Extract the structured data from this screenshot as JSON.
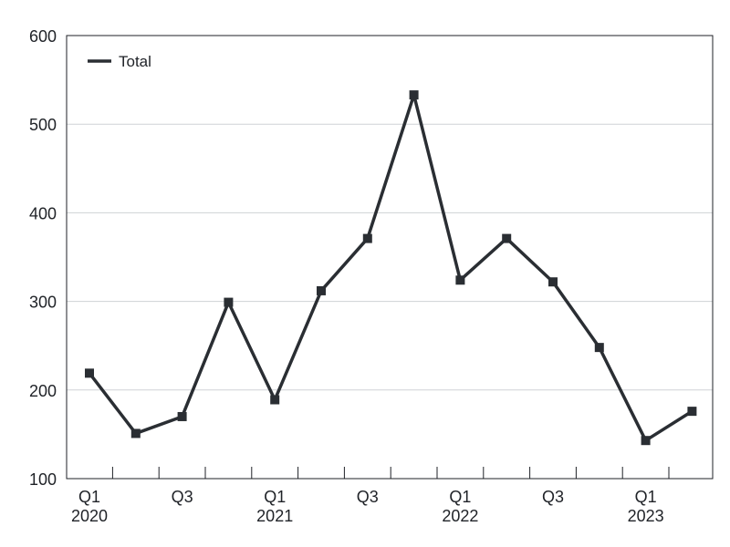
{
  "chart_data": {
    "type": "line",
    "title": "",
    "xlabel": "",
    "ylabel": "",
    "x": [
      "Q1 2020",
      "Q2 2020",
      "Q3 2020",
      "Q4 2020",
      "Q1 2021",
      "Q2 2021",
      "Q3 2021",
      "Q4 2021",
      "Q1 2022",
      "Q2 2022",
      "Q3 2022",
      "Q4 2022",
      "Q1 2023",
      "Q2 2023"
    ],
    "x_tick_labels": [
      {
        "quarter": "Q1",
        "year": "2020",
        "index": 0
      },
      {
        "quarter": "Q3",
        "year": "",
        "index": 2
      },
      {
        "quarter": "Q1",
        "year": "2021",
        "index": 4
      },
      {
        "quarter": "Q3",
        "year": "",
        "index": 6
      },
      {
        "quarter": "Q1",
        "year": "2022",
        "index": 8
      },
      {
        "quarter": "Q3",
        "year": "",
        "index": 10
      },
      {
        "quarter": "Q1",
        "year": "2023",
        "index": 12
      }
    ],
    "y_ticks": [
      "100",
      "200",
      "300",
      "400",
      "500",
      "600"
    ],
    "ylim": [
      100,
      600
    ],
    "grid": "horizontal",
    "legend_position": "top-left",
    "series": [
      {
        "name": "Total",
        "color": "#2a2e33",
        "values": [
          219,
          151,
          170,
          299,
          189,
          312,
          371,
          533,
          324,
          371,
          322,
          248,
          143,
          176
        ]
      }
    ]
  }
}
